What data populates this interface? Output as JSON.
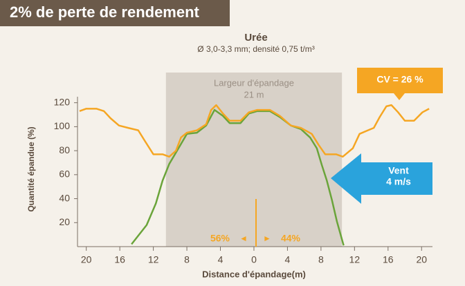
{
  "header": "2% de perte de rendement",
  "chart_data": {
    "type": "line",
    "title": "Urée",
    "subtitle": "Ø 3,0-3,3 mm; densité 0,75 t/m³",
    "xlabel": "Distance d'épandage(m)",
    "ylabel": "Quantité épandue (%)",
    "xlim": [
      -20.8,
      21.3
    ],
    "ylim": [
      0,
      125
    ],
    "xticks": [
      {
        "value": -20,
        "label": "20"
      },
      {
        "value": -16,
        "label": "16"
      },
      {
        "value": -12,
        "label": "12"
      },
      {
        "value": -8,
        "label": "8"
      },
      {
        "value": -4,
        "label": "4"
      },
      0,
      4,
      8,
      12,
      16,
      20
    ],
    "yticks": [
      20,
      40,
      60,
      80,
      100,
      120
    ],
    "band": {
      "x": [
        -10.5,
        10.5
      ],
      "label": "Largeur d'épandage",
      "sublabel": "21 m",
      "color": "#d8d1c8"
    },
    "series": [
      {
        "color": "#f5a623",
        "x": [
          -20.8,
          -20,
          -18.8,
          -17.9,
          -17.1,
          -16.1,
          -15,
          -13.8,
          -13,
          -12,
          -10.9,
          -10.1,
          -9.3,
          -8.7,
          -8,
          -6.8,
          -5.7,
          -5.1,
          -4.5,
          -3.7,
          -2.9,
          -1.6,
          -0.6,
          0.4,
          1.9,
          3.1,
          4.4,
          5.6,
          6.9,
          7.7,
          8.5,
          9.8,
          10.6,
          11.8,
          12.6,
          13.6,
          14.3,
          15,
          15.8,
          16.4,
          17.2,
          18,
          19.1,
          20.1,
          20.9
        ],
        "values": [
          113,
          115,
          115,
          113,
          107,
          101,
          99,
          97,
          88,
          77,
          77,
          75,
          80,
          91,
          95,
          97,
          102,
          114,
          118,
          111,
          105,
          105,
          112,
          114,
          114,
          109,
          101,
          99,
          94,
          85,
          77,
          77,
          75,
          82,
          94,
          97,
          99,
          108,
          117,
          118,
          112,
          105,
          105,
          112,
          115
        ]
      },
      {
        "color": "#6aa43a",
        "x": [
          -14.6,
          -12.8,
          -11.7,
          -10.9,
          -10.1,
          -9,
          -8,
          -6.8,
          -5.7,
          -4.7,
          -3.7,
          -2.9,
          -1.6,
          -0.6,
          0.4,
          1.9,
          3.1,
          4.4,
          5.6,
          6.7,
          7.5,
          8.1,
          8.7,
          9.3,
          9.9,
          10.7
        ],
        "values": [
          2,
          18,
          36,
          55,
          69,
          82,
          94,
          95,
          101,
          114,
          109,
          103,
          103,
          111,
          113,
          113,
          108,
          101,
          98,
          91,
          82,
          68,
          55,
          39,
          21,
          1
        ]
      }
    ],
    "annotations": {
      "cv": "CV = 26 %",
      "wind": "Vent",
      "wind_speed": "4 m/s",
      "left_share": "56%",
      "arrow_left": "◄",
      "arrow_right": "►",
      "right_share": "44%"
    }
  }
}
